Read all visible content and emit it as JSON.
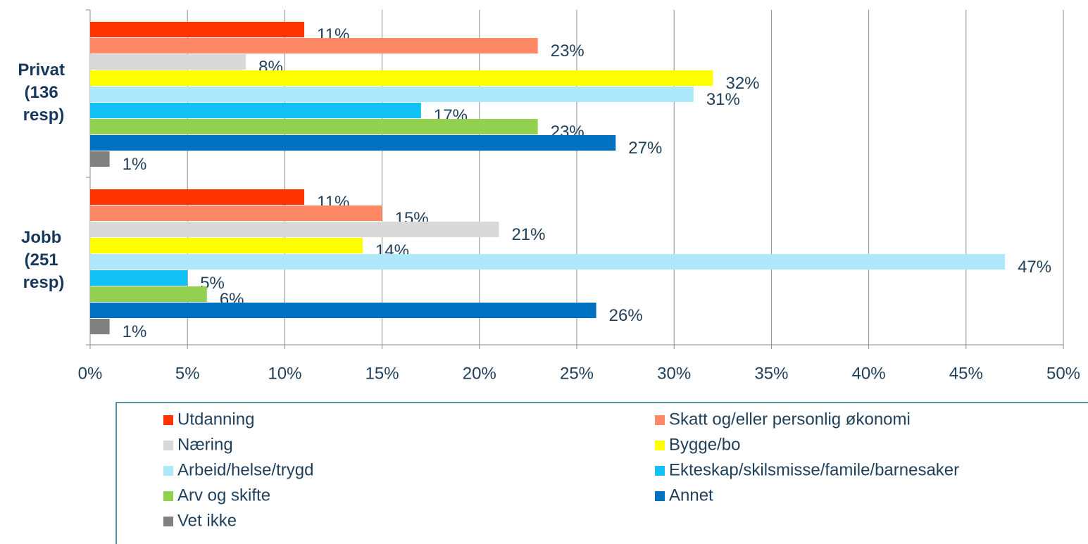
{
  "chart_data": {
    "type": "hbar",
    "categories": [
      "Privat (136 resp)",
      "Jobb (251 resp)"
    ],
    "series": [
      {
        "name": "Utdanning",
        "color": "#ff3300",
        "values": [
          11,
          11
        ],
        "value_labels": [
          "11%",
          "11%"
        ]
      },
      {
        "name": "Skatt og/eller personlig økonomi",
        "color": "#ff8866",
        "values": [
          23,
          15
        ],
        "value_labels": [
          "23%",
          "15%"
        ]
      },
      {
        "name": "Næring",
        "color": "#d9d9d9",
        "values": [
          8,
          21
        ],
        "value_labels": [
          "8%",
          "21%"
        ]
      },
      {
        "name": "Bygge/bo",
        "color": "#ffff00",
        "values": [
          32,
          14
        ],
        "value_labels": [
          "32%",
          "14%"
        ]
      },
      {
        "name": "Arbeid/helse/trygd",
        "color": "#aee8fb",
        "values": [
          31,
          47
        ],
        "value_labels": [
          "31%",
          "47%"
        ]
      },
      {
        "name": "Ekteskap/skilsmisse/famile/barnesaker",
        "color": "#11c0f5",
        "values": [
          17,
          5
        ],
        "value_labels": [
          "17%",
          "5%"
        ]
      },
      {
        "name": "Arv og skifte",
        "color": "#92d050",
        "values": [
          23,
          6
        ],
        "value_labels": [
          "23%",
          "6%"
        ]
      },
      {
        "name": "Annet",
        "color": "#0070c0",
        "values": [
          27,
          26
        ],
        "value_labels": [
          "27%",
          "26%"
        ]
      },
      {
        "name": "Vet ikke",
        "color": "#808080",
        "values": [
          1,
          1
        ],
        "value_labels": [
          "1%",
          "1%"
        ]
      }
    ],
    "xlim": [
      0,
      50
    ],
    "xticks": [
      {
        "value": 0,
        "label": "0%"
      },
      {
        "value": 5,
        "label": "5%"
      },
      {
        "value": 10,
        "label": "10%"
      },
      {
        "value": 15,
        "label": "15%"
      },
      {
        "value": 20,
        "label": "20%"
      },
      {
        "value": 25,
        "label": "25%"
      },
      {
        "value": 30,
        "label": "30%"
      },
      {
        "value": 35,
        "label": "35%"
      },
      {
        "value": 40,
        "label": "40%"
      },
      {
        "value": 45,
        "label": "45%"
      },
      {
        "value": 50,
        "label": "50%"
      }
    ],
    "grid": true,
    "legend": "bottom"
  }
}
